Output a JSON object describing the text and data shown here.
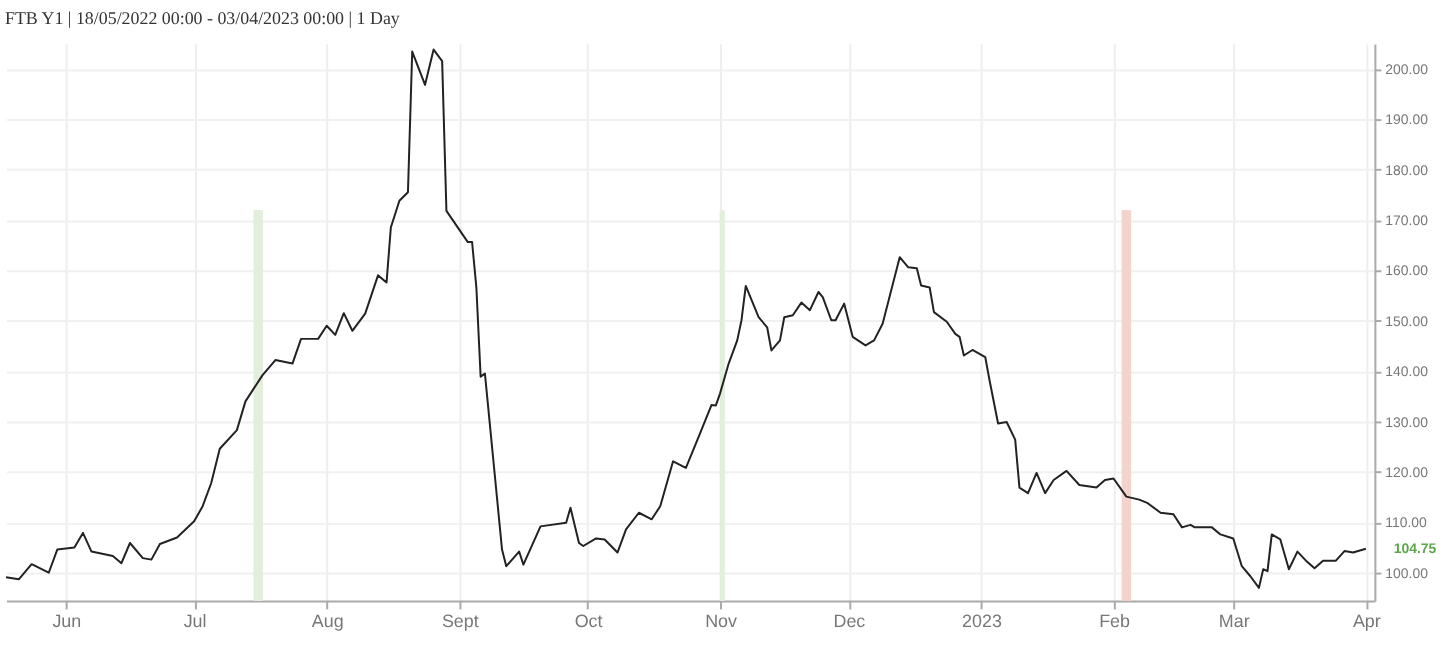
{
  "chart_data": {
    "type": "line",
    "title": "FTB Y1 | 18/05/2022 00:00 - 03/04/2023 00:00 | 1 Day",
    "x": [
      "2022-05-18",
      "2022-05-21",
      "2022-05-24",
      "2022-05-28",
      "2022-05-30",
      "2022-06-03",
      "2022-06-05",
      "2022-06-07",
      "2022-06-12",
      "2022-06-14",
      "2022-06-16",
      "2022-06-19",
      "2022-06-21",
      "2022-06-23",
      "2022-06-27",
      "2022-07-01",
      "2022-07-03",
      "2022-07-05",
      "2022-07-07",
      "2022-07-11",
      "2022-07-13",
      "2022-07-17",
      "2022-07-20",
      "2022-07-24",
      "2022-07-26",
      "2022-07-30",
      "2022-08-01",
      "2022-08-03",
      "2022-08-05",
      "2022-08-07",
      "2022-08-10",
      "2022-08-13",
      "2022-08-15",
      "2022-08-16",
      "2022-08-18",
      "2022-08-20",
      "2022-08-21",
      "2022-08-24",
      "2022-08-26",
      "2022-08-28",
      "2022-08-29",
      "2022-09-03",
      "2022-09-04",
      "2022-09-05",
      "2022-09-06",
      "2022-09-07",
      "2022-09-11",
      "2022-09-12",
      "2022-09-15",
      "2022-09-16",
      "2022-09-20",
      "2022-09-26",
      "2022-09-27",
      "2022-09-29",
      "2022-09-30",
      "2022-10-03",
      "2022-10-05",
      "2022-10-08",
      "2022-10-10",
      "2022-10-13",
      "2022-10-16",
      "2022-10-18",
      "2022-10-21",
      "2022-10-24",
      "2022-10-27",
      "2022-10-30",
      "2022-10-31",
      "2022-11-01",
      "2022-11-03",
      "2022-11-05",
      "2022-11-06",
      "2022-11-07",
      "2022-11-10",
      "2022-11-12",
      "2022-11-13",
      "2022-11-15",
      "2022-11-16",
      "2022-11-18",
      "2022-11-20",
      "2022-11-22",
      "2022-11-24",
      "2022-11-25",
      "2022-11-27",
      "2022-11-28",
      "2022-11-30",
      "2022-12-02",
      "2022-12-05",
      "2022-12-07",
      "2022-12-09",
      "2022-12-13",
      "2022-12-15",
      "2022-12-17",
      "2022-12-18",
      "2022-12-20",
      "2022-12-21",
      "2022-12-24",
      "2022-12-26",
      "2022-12-27",
      "2022-12-28",
      "2022-12-30",
      "2023-01-02",
      "2023-01-03",
      "2023-01-05",
      "2023-01-07",
      "2023-01-09",
      "2023-01-10",
      "2023-01-12",
      "2023-01-14",
      "2023-01-16",
      "2023-01-18",
      "2023-01-21",
      "2023-01-24",
      "2023-01-28",
      "2023-01-30",
      "2023-02-01",
      "2023-02-04",
      "2023-02-07",
      "2023-02-09",
      "2023-02-12",
      "2023-02-15",
      "2023-02-17",
      "2023-02-19",
      "2023-02-20",
      "2023-02-24",
      "2023-02-26",
      "2023-03-01",
      "2023-03-03",
      "2023-03-05",
      "2023-03-07",
      "2023-03-08",
      "2023-03-09",
      "2023-03-10",
      "2023-03-12",
      "2023-03-14",
      "2023-03-16",
      "2023-03-18",
      "2023-03-20",
      "2023-03-22",
      "2023-03-25",
      "2023-03-27",
      "2023-03-29",
      "2023-04-01"
    ],
    "series": [
      {
        "color": "#222222",
        "values": [
          99.1,
          98.7,
          101.7,
          100,
          104.6,
          105,
          107.9,
          104.2,
          103.3,
          101.9,
          105.9,
          102.9,
          102.6,
          105.7,
          107,
          110.2,
          113.2,
          117.8,
          124.6,
          128.3,
          134,
          139.2,
          142.2,
          141.5,
          146.4,
          146.4,
          149,
          147.2,
          151.5,
          148,
          151.4,
          159,
          157.6,
          168.5,
          173.8,
          175.5,
          203.4,
          196.8,
          203.8,
          201.5,
          171.8,
          165.6,
          165.6,
          156.6,
          138.9,
          139.5,
          104.6,
          101.3,
          104.2,
          101.6,
          109.2,
          109.9,
          112.9,
          105.9,
          105.3,
          106.8,
          106.6,
          104,
          108.6,
          111.9,
          110.6,
          113.2,
          122.1,
          120.8,
          127,
          133.3,
          133.2,
          135.6,
          141.5,
          146.1,
          150.1,
          156.9,
          150.7,
          148.7,
          144.1,
          146.1,
          150.7,
          151.1,
          153.6,
          152.1,
          155.7,
          154.7,
          150.1,
          150.1,
          153.4,
          146.8,
          145.1,
          146.1,
          149.4,
          162.6,
          160.6,
          160.4,
          157,
          156.6,
          151.7,
          149.8,
          147.4,
          146.8,
          143.1,
          144.2,
          142.8,
          138.2,
          129.6,
          129.9,
          126.4,
          116.9,
          115.8,
          119.8,
          115.8,
          118.4,
          120.2,
          117.4,
          116.9,
          118.4,
          118.7,
          115.1,
          114.5,
          113.8,
          111.9,
          111.6,
          109,
          109.5,
          109,
          109,
          107.6,
          106.8,
          101.3,
          99.3,
          97,
          100.7,
          100.3,
          107.6,
          106.6,
          100.7,
          104.2,
          102.4,
          100.9,
          102.4,
          102.4,
          104.3,
          104,
          104.75
        ]
      }
    ],
    "xlim": [
      "2022-05-18",
      "2023-04-03"
    ],
    "xticks": [
      {
        "value": "2022-06-01",
        "label": "Jun"
      },
      {
        "value": "2022-07-01",
        "label": "Jul"
      },
      {
        "value": "2022-08-01",
        "label": "Aug"
      },
      {
        "value": "2022-09-01",
        "label": "Sept"
      },
      {
        "value": "2022-10-01",
        "label": "Oct"
      },
      {
        "value": "2022-11-01",
        "label": "Nov"
      },
      {
        "value": "2022-12-01",
        "label": "Dec"
      },
      {
        "value": "2023-01-01",
        "label": "2023"
      },
      {
        "value": "2023-02-01",
        "label": "Feb"
      },
      {
        "value": "2023-03-01",
        "label": "Mar"
      },
      {
        "value": "2023-04-01",
        "label": "Apr"
      }
    ],
    "ylim": [
      94.5,
      205
    ],
    "yticks": [
      {
        "value": 100,
        "label": "100.00"
      },
      {
        "value": 110,
        "label": "110.00"
      },
      {
        "value": 120,
        "label": "120.00"
      },
      {
        "value": 130,
        "label": "130.00"
      },
      {
        "value": 140,
        "label": "140.00"
      },
      {
        "value": 150,
        "label": "150.00"
      },
      {
        "value": 160,
        "label": "160.00"
      },
      {
        "value": 170,
        "label": "170.00"
      },
      {
        "value": 180,
        "label": "180.00"
      },
      {
        "value": 190,
        "label": "190.00"
      },
      {
        "value": 200,
        "label": "200.00"
      }
    ],
    "bands": [
      {
        "axis": "x",
        "from": "2022-07-15",
        "to": "2022-07-17",
        "color": "#e3efdc"
      },
      {
        "axis": "x",
        "from": "2022-11-01",
        "to": "2022-11-02",
        "color": "#e3efdc"
      },
      {
        "axis": "x",
        "from": "2023-02-03",
        "to": "2023-02-05",
        "color": "#f4d3cc"
      }
    ],
    "annotations": [
      {
        "text": "104.75",
        "x": "2023-04-01",
        "y": 104.75
      }
    ],
    "grid": true
  }
}
